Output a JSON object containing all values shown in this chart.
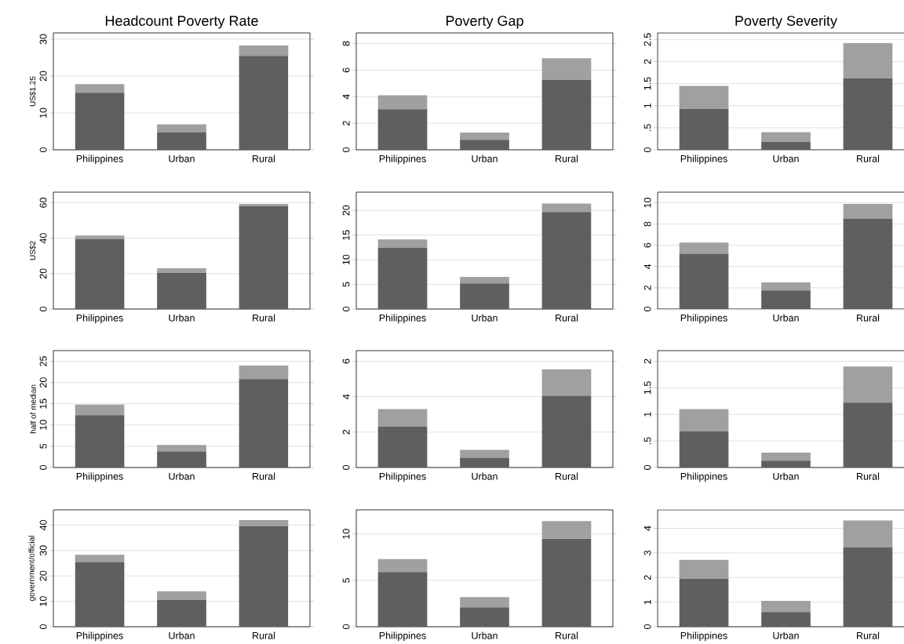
{
  "chart_data": [
    {
      "type": "bar",
      "stacked": true,
      "title": "Headcount Poverty Rate",
      "ylabel": "US$1.25",
      "categories": [
        "Philippines",
        "Urban",
        "Rural"
      ],
      "grid": "y",
      "ylim": [
        0,
        31.7
      ],
      "yticks": [
        0,
        10,
        20,
        30
      ],
      "series": [
        {
          "color": "#5f5f5f",
          "values": [
            15.5,
            4.8,
            25.5
          ]
        },
        {
          "color": "#a0a0a0",
          "values": [
            2.3,
            2.1,
            2.8
          ]
        }
      ]
    },
    {
      "type": "bar",
      "stacked": true,
      "title": "Poverty Gap",
      "categories": [
        "Philippines",
        "Urban",
        "Rural"
      ],
      "grid": "y",
      "ylim": [
        0,
        8.8
      ],
      "yticks": [
        0,
        2,
        4,
        6,
        8
      ],
      "series": [
        {
          "color": "#5f5f5f",
          "values": [
            3.05,
            0.75,
            5.25
          ]
        },
        {
          "color": "#a0a0a0",
          "values": [
            1.05,
            0.55,
            1.65
          ]
        }
      ]
    },
    {
      "type": "bar",
      "stacked": true,
      "title": "Poverty Severity",
      "categories": [
        "Philippines",
        "Urban",
        "Rural"
      ],
      "grid": "y",
      "ylim": [
        0,
        2.65
      ],
      "yticks": [
        {
          "value": 0,
          "label": "0"
        },
        {
          "value": 0.5,
          "label": ".5"
        },
        {
          "value": 1,
          "label": "1"
        },
        {
          "value": 1.5,
          "label": "1.5"
        },
        {
          "value": 2,
          "label": "2"
        },
        {
          "value": 2.5,
          "label": "2.5"
        }
      ],
      "series": [
        {
          "color": "#5f5f5f",
          "values": [
            0.93,
            0.18,
            1.62
          ]
        },
        {
          "color": "#a0a0a0",
          "values": [
            0.52,
            0.22,
            0.8
          ]
        }
      ]
    },
    {
      "type": "bar",
      "stacked": true,
      "ylabel": "US$2",
      "categories": [
        "Philippines",
        "Urban",
        "Rural"
      ],
      "grid": "y",
      "ylim": [
        0,
        66
      ],
      "yticks": [
        0,
        20,
        40,
        60
      ],
      "series": [
        {
          "color": "#5f5f5f",
          "values": [
            39.5,
            20.5,
            58
          ]
        },
        {
          "color": "#a0a0a0",
          "values": [
            2,
            2.5,
            1.3
          ]
        }
      ]
    },
    {
      "type": "bar",
      "stacked": true,
      "categories": [
        "Philippines",
        "Urban",
        "Rural"
      ],
      "grid": "y",
      "ylim": [
        0,
        23.7
      ],
      "yticks": [
        0,
        5,
        10,
        15,
        20
      ],
      "series": [
        {
          "color": "#5f5f5f",
          "values": [
            12.4,
            5.2,
            19.7
          ]
        },
        {
          "color": "#a0a0a0",
          "values": [
            1.7,
            1.3,
            1.7
          ]
        }
      ]
    },
    {
      "type": "bar",
      "stacked": true,
      "categories": [
        "Philippines",
        "Urban",
        "Rural"
      ],
      "grid": "y",
      "ylim": [
        0,
        11
      ],
      "yticks": [
        0,
        2,
        4,
        6,
        8,
        10
      ],
      "series": [
        {
          "color": "#5f5f5f",
          "values": [
            5.2,
            1.75,
            8.5
          ]
        },
        {
          "color": "#a0a0a0",
          "values": [
            1.05,
            0.75,
            1.4
          ]
        }
      ]
    },
    {
      "type": "bar",
      "stacked": true,
      "ylabel": "half of median",
      "categories": [
        "Philippines",
        "Urban",
        "Rural"
      ],
      "grid": "y",
      "ylim": [
        0,
        27.5
      ],
      "yticks": [
        0,
        5,
        10,
        15,
        20,
        25
      ],
      "series": [
        {
          "color": "#5f5f5f",
          "values": [
            12.3,
            3.8,
            20.8
          ]
        },
        {
          "color": "#a0a0a0",
          "values": [
            2.5,
            1.5,
            3.2
          ]
        }
      ]
    },
    {
      "type": "bar",
      "stacked": true,
      "categories": [
        "Philippines",
        "Urban",
        "Rural"
      ],
      "grid": "y",
      "ylim": [
        0,
        6.6
      ],
      "yticks": [
        0,
        2,
        4,
        6
      ],
      "series": [
        {
          "color": "#5f5f5f",
          "values": [
            2.3,
            0.55,
            4.05
          ]
        },
        {
          "color": "#a0a0a0",
          "values": [
            1.0,
            0.45,
            1.5
          ]
        }
      ]
    },
    {
      "type": "bar",
      "stacked": true,
      "categories": [
        "Philippines",
        "Urban",
        "Rural"
      ],
      "grid": "y",
      "ylim": [
        0,
        2.2
      ],
      "yticks": [
        {
          "value": 0,
          "label": "0"
        },
        {
          "value": 0.5,
          "label": ".5"
        },
        {
          "value": 1,
          "label": "1"
        },
        {
          "value": 1.5,
          "label": "1.5"
        },
        {
          "value": 2,
          "label": "2"
        }
      ],
      "series": [
        {
          "color": "#5f5f5f",
          "values": [
            0.68,
            0.13,
            1.22
          ]
        },
        {
          "color": "#a0a0a0",
          "values": [
            0.42,
            0.15,
            0.68
          ]
        }
      ]
    },
    {
      "type": "bar",
      "stacked": true,
      "ylabel": "government/official",
      "categories": [
        "Philippines",
        "Urban",
        "Rural"
      ],
      "grid": "y",
      "ylim": [
        0,
        46
      ],
      "yticks": [
        0,
        10,
        20,
        30,
        40
      ],
      "series": [
        {
          "color": "#5f5f5f",
          "values": [
            25.5,
            10.5,
            39.5
          ]
        },
        {
          "color": "#a0a0a0",
          "values": [
            2.8,
            3.5,
            2.5
          ]
        }
      ]
    },
    {
      "type": "bar",
      "stacked": true,
      "categories": [
        "Philippines",
        "Urban",
        "Rural"
      ],
      "grid": "y",
      "ylim": [
        0,
        12.6
      ],
      "yticks": [
        0,
        5,
        10
      ],
      "series": [
        {
          "color": "#5f5f5f",
          "values": [
            5.9,
            2.1,
            9.5
          ]
        },
        {
          "color": "#a0a0a0",
          "values": [
            1.4,
            1.1,
            1.9
          ]
        }
      ]
    },
    {
      "type": "bar",
      "stacked": true,
      "categories": [
        "Philippines",
        "Urban",
        "Rural"
      ],
      "grid": "y",
      "ylim": [
        0,
        4.75
      ],
      "yticks": [
        0,
        1,
        2,
        3,
        4
      ],
      "series": [
        {
          "color": "#5f5f5f",
          "values": [
            1.95,
            0.6,
            3.22
          ]
        },
        {
          "color": "#a0a0a0",
          "values": [
            0.77,
            0.45,
            1.1
          ]
        }
      ]
    }
  ]
}
